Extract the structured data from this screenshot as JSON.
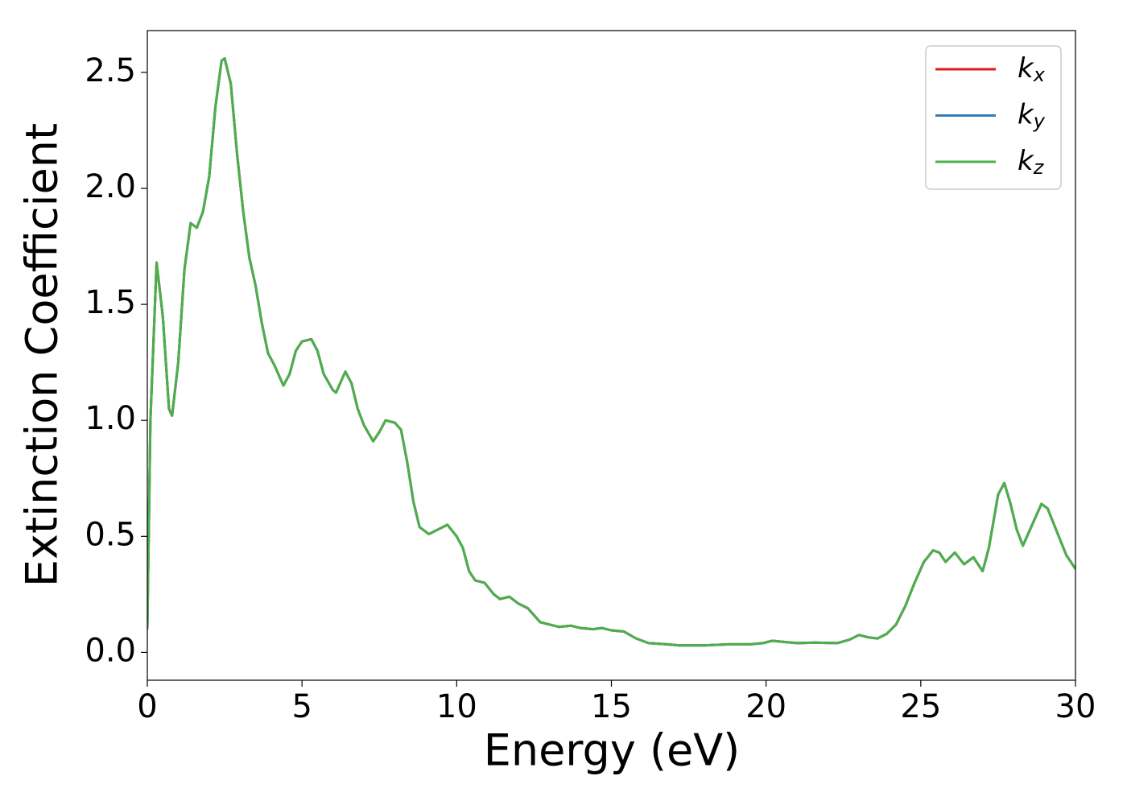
{
  "chart_data": {
    "type": "line",
    "xlabel": "Energy (eV)",
    "ylabel": "Extinction Coefficient",
    "x": [
      0,
      0.1,
      0.3,
      0.5,
      0.7,
      0.8,
      1.0,
      1.2,
      1.4,
      1.6,
      1.8,
      2.0,
      2.2,
      2.4,
      2.5,
      2.7,
      2.9,
      3.1,
      3.3,
      3.5,
      3.7,
      3.9,
      4.1,
      4.4,
      4.6,
      4.8,
      5.0,
      5.3,
      5.5,
      5.7,
      6.0,
      6.1,
      6.3,
      6.4,
      6.6,
      6.8,
      7.0,
      7.3,
      7.5,
      7.7,
      8.0,
      8.2,
      8.4,
      8.6,
      8.8,
      9.1,
      9.4,
      9.7,
      10.0,
      10.2,
      10.4,
      10.6,
      10.9,
      11.2,
      11.4,
      11.7,
      12.0,
      12.3,
      12.7,
      13.0,
      13.3,
      13.7,
      14.0,
      14.4,
      14.7,
      15.0,
      15.4,
      15.8,
      16.2,
      16.8,
      17.2,
      18.0,
      18.8,
      19.5,
      19.9,
      20.2,
      20.6,
      21.0,
      21.6,
      22.3,
      22.7,
      23.0,
      23.3,
      23.6,
      23.9,
      24.2,
      24.5,
      24.8,
      25.1,
      25.4,
      25.6,
      25.8,
      26.1,
      26.4,
      26.7,
      27.0,
      27.2,
      27.5,
      27.7,
      27.9,
      28.1,
      28.3,
      28.6,
      28.9,
      29.1,
      29.4,
      29.7,
      30.0
    ],
    "series": [
      {
        "name": "kx",
        "color": "#e41a1c",
        "values": [
          0.1,
          1.0,
          1.68,
          1.45,
          1.05,
          1.02,
          1.25,
          1.65,
          1.85,
          1.83,
          1.9,
          2.05,
          2.35,
          2.55,
          2.56,
          2.45,
          2.15,
          1.9,
          1.7,
          1.58,
          1.42,
          1.29,
          1.24,
          1.15,
          1.2,
          1.3,
          1.34,
          1.35,
          1.3,
          1.2,
          1.13,
          1.12,
          1.18,
          1.21,
          1.16,
          1.05,
          0.98,
          0.91,
          0.95,
          1.0,
          0.99,
          0.96,
          0.82,
          0.65,
          0.54,
          0.51,
          0.53,
          0.55,
          0.5,
          0.45,
          0.35,
          0.31,
          0.3,
          0.25,
          0.23,
          0.24,
          0.21,
          0.19,
          0.13,
          0.12,
          0.11,
          0.115,
          0.105,
          0.1,
          0.105,
          0.095,
          0.09,
          0.06,
          0.04,
          0.035,
          0.03,
          0.03,
          0.035,
          0.035,
          0.04,
          0.05,
          0.045,
          0.04,
          0.042,
          0.04,
          0.055,
          0.075,
          0.065,
          0.06,
          0.08,
          0.12,
          0.2,
          0.3,
          0.39,
          0.44,
          0.43,
          0.39,
          0.43,
          0.38,
          0.41,
          0.35,
          0.45,
          0.68,
          0.73,
          0.64,
          0.53,
          0.46,
          0.55,
          0.64,
          0.62,
          0.52,
          0.42,
          0.36
        ]
      },
      {
        "name": "ky",
        "color": "#377eb8",
        "values": [
          0.1,
          1.0,
          1.68,
          1.45,
          1.05,
          1.02,
          1.25,
          1.65,
          1.85,
          1.83,
          1.9,
          2.05,
          2.35,
          2.55,
          2.56,
          2.45,
          2.15,
          1.9,
          1.7,
          1.58,
          1.42,
          1.29,
          1.24,
          1.15,
          1.2,
          1.3,
          1.34,
          1.35,
          1.3,
          1.2,
          1.13,
          1.12,
          1.18,
          1.21,
          1.16,
          1.05,
          0.98,
          0.91,
          0.95,
          1.0,
          0.99,
          0.96,
          0.82,
          0.65,
          0.54,
          0.51,
          0.53,
          0.55,
          0.5,
          0.45,
          0.35,
          0.31,
          0.3,
          0.25,
          0.23,
          0.24,
          0.21,
          0.19,
          0.13,
          0.12,
          0.11,
          0.115,
          0.105,
          0.1,
          0.105,
          0.095,
          0.09,
          0.06,
          0.04,
          0.035,
          0.03,
          0.03,
          0.035,
          0.035,
          0.04,
          0.05,
          0.045,
          0.04,
          0.042,
          0.04,
          0.055,
          0.075,
          0.065,
          0.06,
          0.08,
          0.12,
          0.2,
          0.3,
          0.39,
          0.44,
          0.43,
          0.39,
          0.43,
          0.38,
          0.41,
          0.35,
          0.45,
          0.68,
          0.73,
          0.64,
          0.53,
          0.46,
          0.55,
          0.64,
          0.62,
          0.52,
          0.42,
          0.36
        ]
      },
      {
        "name": "kz",
        "color": "#4daf4a",
        "values": [
          0.1,
          1.0,
          1.68,
          1.45,
          1.05,
          1.02,
          1.25,
          1.65,
          1.85,
          1.83,
          1.9,
          2.05,
          2.35,
          2.55,
          2.56,
          2.45,
          2.15,
          1.9,
          1.7,
          1.58,
          1.42,
          1.29,
          1.24,
          1.15,
          1.2,
          1.3,
          1.34,
          1.35,
          1.3,
          1.2,
          1.13,
          1.12,
          1.18,
          1.21,
          1.16,
          1.05,
          0.98,
          0.91,
          0.95,
          1.0,
          0.99,
          0.96,
          0.82,
          0.65,
          0.54,
          0.51,
          0.53,
          0.55,
          0.5,
          0.45,
          0.35,
          0.31,
          0.3,
          0.25,
          0.23,
          0.24,
          0.21,
          0.19,
          0.13,
          0.12,
          0.11,
          0.115,
          0.105,
          0.1,
          0.105,
          0.095,
          0.09,
          0.06,
          0.04,
          0.035,
          0.03,
          0.03,
          0.035,
          0.035,
          0.04,
          0.05,
          0.045,
          0.04,
          0.042,
          0.04,
          0.055,
          0.075,
          0.065,
          0.06,
          0.08,
          0.12,
          0.2,
          0.3,
          0.39,
          0.44,
          0.43,
          0.39,
          0.43,
          0.38,
          0.41,
          0.35,
          0.45,
          0.68,
          0.73,
          0.64,
          0.53,
          0.46,
          0.55,
          0.64,
          0.62,
          0.52,
          0.42,
          0.36
        ]
      }
    ],
    "xlim": [
      0,
      30
    ],
    "xticks": [
      0,
      5,
      10,
      15,
      20,
      25,
      30
    ],
    "ylim": [
      -0.12,
      2.68
    ],
    "yticks": [
      {
        "value": 0,
        "label": "0.0"
      },
      0.5,
      {
        "value": 1,
        "label": "1.0"
      },
      1.5,
      {
        "value": 2,
        "label": "2.0"
      },
      2.5
    ],
    "grid": false,
    "legend": "upper right"
  }
}
